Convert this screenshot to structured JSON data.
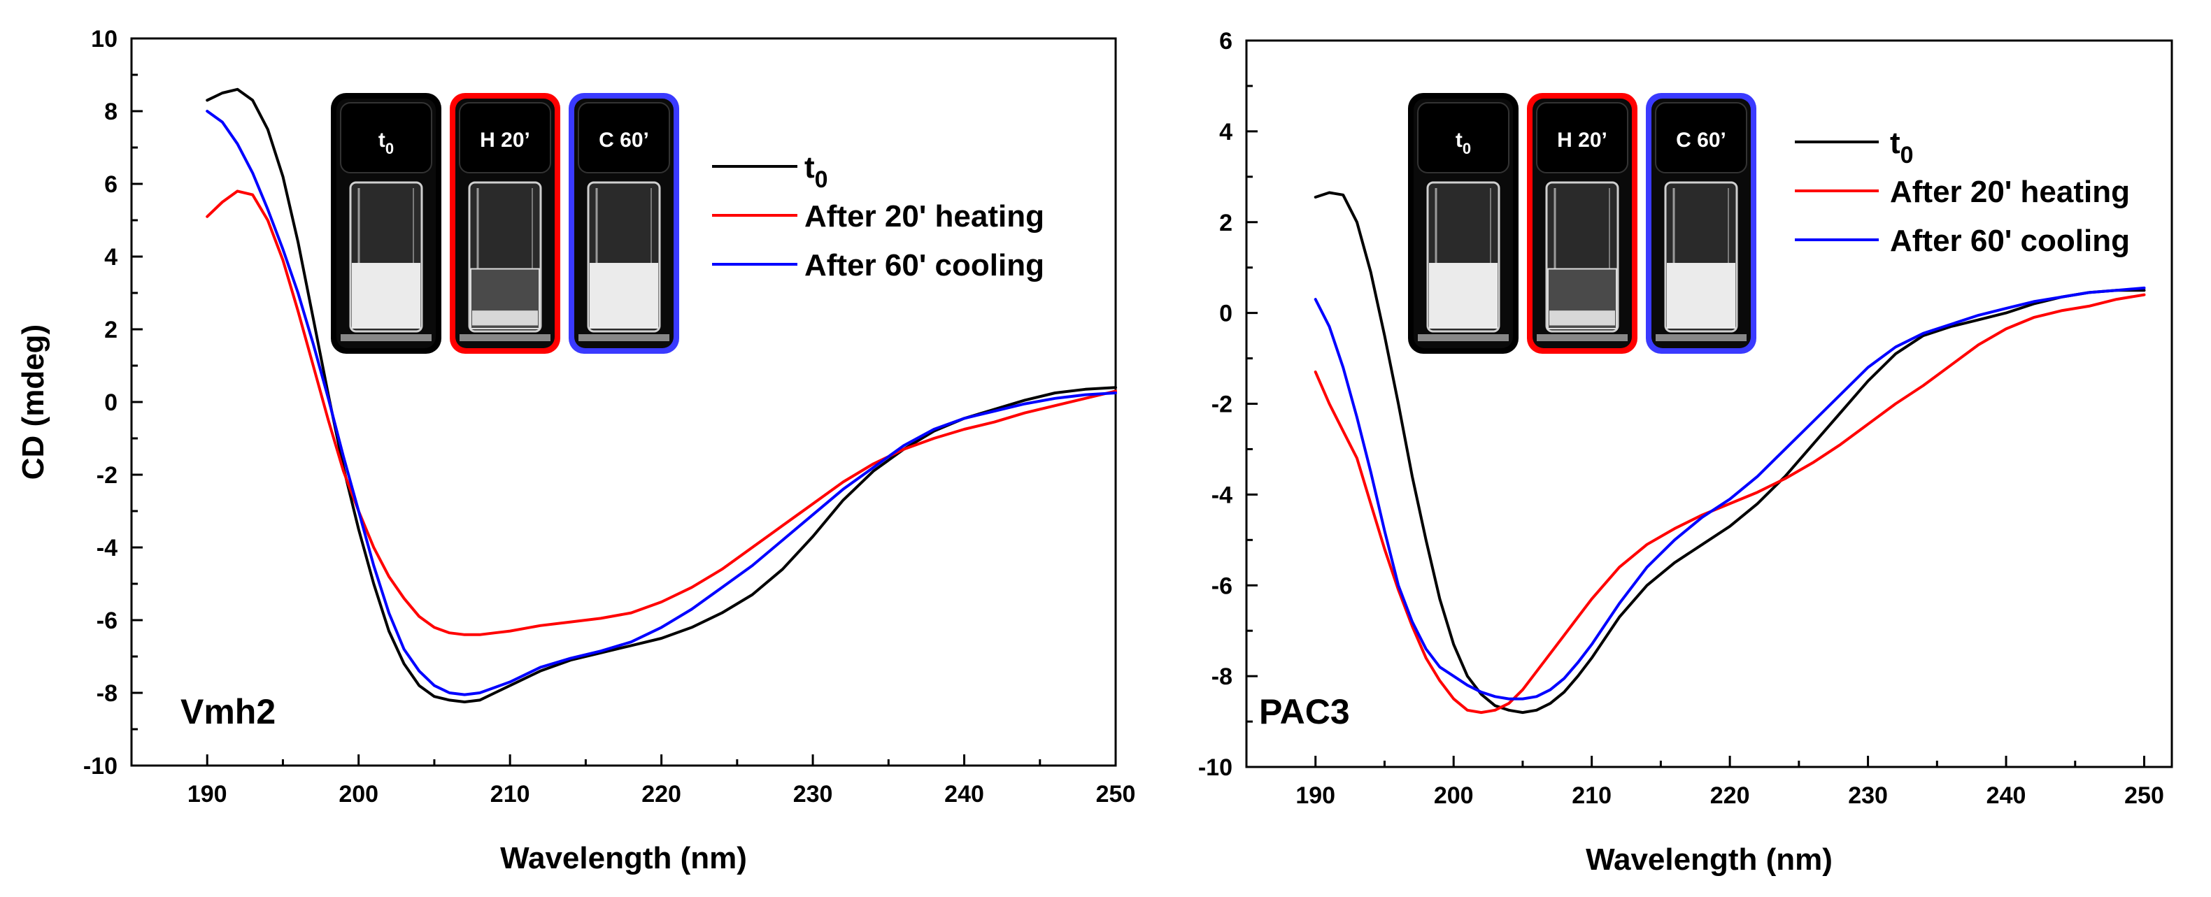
{
  "chart_data": [
    {
      "type": "line",
      "panel_label": "Vmh2",
      "xlabel": "Wavelength (nm)",
      "ylabel": "CD (mdeg)",
      "xlim": [
        185,
        250
      ],
      "ylim": [
        -10,
        10
      ],
      "xticks": [
        190,
        200,
        210,
        220,
        230,
        240,
        250
      ],
      "yticks": [
        -10,
        -8,
        -6,
        -4,
        -2,
        0,
        2,
        4,
        6,
        8,
        10
      ],
      "legend": [
        {
          "main": "t",
          "sub": "0",
          "color": "#000000"
        },
        {
          "main": "After 20' heating",
          "sub": "",
          "color": "#ff0000"
        },
        {
          "main": "After 60' cooling",
          "sub": "",
          "color": "#0000ff"
        }
      ],
      "vials": [
        {
          "main": "t",
          "sub": "0",
          "frame": "#000000",
          "liquid": "milky"
        },
        {
          "main": "H 20’",
          "sub": "",
          "frame": "#ff0000",
          "liquid": "clear-sediment"
        },
        {
          "main": "C 60’",
          "sub": "",
          "frame": "#3a3aff",
          "liquid": "milky"
        }
      ],
      "series": [
        {
          "name": "t0",
          "color": "#000000",
          "x": [
            190,
            191,
            192,
            193,
            194,
            195,
            196,
            197,
            198,
            199,
            200,
            201,
            202,
            203,
            204,
            205,
            206,
            207,
            208,
            209,
            210,
            212,
            214,
            216,
            218,
            220,
            222,
            224,
            226,
            228,
            230,
            232,
            234,
            236,
            238,
            240,
            242,
            244,
            246,
            248,
            250
          ],
          "y": [
            8.3,
            8.5,
            8.6,
            8.3,
            7.5,
            6.2,
            4.4,
            2.3,
            0.2,
            -1.8,
            -3.5,
            -5.0,
            -6.3,
            -7.2,
            -7.8,
            -8.1,
            -8.2,
            -8.25,
            -8.2,
            -8.0,
            -7.8,
            -7.4,
            -7.1,
            -6.9,
            -6.7,
            -6.5,
            -6.2,
            -5.8,
            -5.3,
            -4.6,
            -3.7,
            -2.7,
            -1.9,
            -1.3,
            -0.8,
            -0.45,
            -0.2,
            0.05,
            0.25,
            0.35,
            0.4
          ]
        },
        {
          "name": "After 20' heating",
          "color": "#ff0000",
          "x": [
            190,
            191,
            192,
            193,
            194,
            195,
            196,
            197,
            198,
            199,
            200,
            201,
            202,
            203,
            204,
            205,
            206,
            207,
            208,
            209,
            210,
            212,
            214,
            216,
            218,
            220,
            222,
            224,
            226,
            228,
            230,
            232,
            234,
            236,
            238,
            240,
            242,
            244,
            246,
            248,
            250
          ],
          "y": [
            5.1,
            5.5,
            5.8,
            5.7,
            5.0,
            3.9,
            2.5,
            1.0,
            -0.5,
            -1.9,
            -3.0,
            -4.0,
            -4.8,
            -5.4,
            -5.9,
            -6.2,
            -6.35,
            -6.4,
            -6.4,
            -6.35,
            -6.3,
            -6.15,
            -6.05,
            -5.95,
            -5.8,
            -5.5,
            -5.1,
            -4.6,
            -4.0,
            -3.4,
            -2.8,
            -2.2,
            -1.7,
            -1.3,
            -1.0,
            -0.75,
            -0.55,
            -0.3,
            -0.1,
            0.1,
            0.3
          ]
        },
        {
          "name": "After 60' cooling",
          "color": "#0000ff",
          "x": [
            190,
            191,
            192,
            193,
            194,
            195,
            196,
            197,
            198,
            199,
            200,
            201,
            202,
            203,
            204,
            205,
            206,
            207,
            208,
            209,
            210,
            212,
            214,
            216,
            218,
            220,
            222,
            224,
            226,
            228,
            230,
            232,
            234,
            236,
            238,
            240,
            242,
            244,
            246,
            248,
            250
          ],
          "y": [
            8.0,
            7.7,
            7.1,
            6.3,
            5.3,
            4.2,
            3.0,
            1.6,
            0.1,
            -1.5,
            -3.0,
            -4.5,
            -5.8,
            -6.8,
            -7.4,
            -7.8,
            -8.0,
            -8.05,
            -8.0,
            -7.85,
            -7.7,
            -7.3,
            -7.05,
            -6.85,
            -6.6,
            -6.2,
            -5.7,
            -5.1,
            -4.5,
            -3.8,
            -3.1,
            -2.4,
            -1.8,
            -1.2,
            -0.75,
            -0.45,
            -0.25,
            -0.05,
            0.1,
            0.2,
            0.25
          ]
        }
      ]
    },
    {
      "type": "line",
      "panel_label": "PAC3",
      "xlabel": "Wavelength (nm)",
      "ylabel": "",
      "xlim": [
        185,
        252
      ],
      "ylim": [
        -10,
        6
      ],
      "xticks": [
        190,
        200,
        210,
        220,
        230,
        240,
        250
      ],
      "yticks": [
        -10,
        -8,
        -6,
        -4,
        -2,
        0,
        2,
        4,
        6
      ],
      "legend": [
        {
          "main": "t",
          "sub": "0",
          "color": "#000000"
        },
        {
          "main": "After 20' heating",
          "sub": "",
          "color": "#ff0000"
        },
        {
          "main": "After 60' cooling",
          "sub": "",
          "color": "#0000ff"
        }
      ],
      "vials": [
        {
          "main": "t",
          "sub": "0",
          "frame": "#000000",
          "liquid": "milky"
        },
        {
          "main": "H 20’",
          "sub": "",
          "frame": "#ff0000",
          "liquid": "clear-sediment"
        },
        {
          "main": "C 60’",
          "sub": "",
          "frame": "#3a3aff",
          "liquid": "milky"
        }
      ],
      "series": [
        {
          "name": "t0",
          "color": "#000000",
          "x": [
            190,
            191,
            192,
            193,
            194,
            195,
            196,
            197,
            198,
            199,
            200,
            201,
            202,
            203,
            204,
            205,
            206,
            207,
            208,
            209,
            210,
            212,
            214,
            216,
            218,
            220,
            222,
            224,
            226,
            228,
            230,
            232,
            234,
            236,
            238,
            240,
            242,
            244,
            246,
            248,
            250
          ],
          "y": [
            2.55,
            2.65,
            2.6,
            2.0,
            0.9,
            -0.5,
            -2.0,
            -3.6,
            -5.0,
            -6.3,
            -7.3,
            -8.0,
            -8.4,
            -8.65,
            -8.75,
            -8.8,
            -8.75,
            -8.6,
            -8.35,
            -8.0,
            -7.6,
            -6.7,
            -6.0,
            -5.5,
            -5.1,
            -4.7,
            -4.2,
            -3.6,
            -2.9,
            -2.2,
            -1.5,
            -0.9,
            -0.5,
            -0.3,
            -0.15,
            0.0,
            0.2,
            0.35,
            0.45,
            0.5,
            0.5
          ]
        },
        {
          "name": "After 20' heating",
          "color": "#ff0000",
          "x": [
            190,
            191,
            192,
            193,
            194,
            195,
            196,
            197,
            198,
            199,
            200,
            201,
            202,
            203,
            204,
            205,
            206,
            207,
            208,
            209,
            210,
            212,
            214,
            216,
            218,
            220,
            222,
            224,
            226,
            228,
            230,
            232,
            234,
            236,
            238,
            240,
            242,
            244,
            246,
            248,
            250
          ],
          "y": [
            -1.3,
            -2.0,
            -2.6,
            -3.2,
            -4.2,
            -5.2,
            -6.1,
            -6.9,
            -7.6,
            -8.1,
            -8.5,
            -8.75,
            -8.8,
            -8.75,
            -8.6,
            -8.3,
            -7.9,
            -7.5,
            -7.1,
            -6.7,
            -6.3,
            -5.6,
            -5.1,
            -4.75,
            -4.45,
            -4.2,
            -3.95,
            -3.65,
            -3.3,
            -2.9,
            -2.45,
            -2.0,
            -1.6,
            -1.15,
            -0.7,
            -0.35,
            -0.1,
            0.05,
            0.15,
            0.3,
            0.4
          ]
        },
        {
          "name": "After 60' cooling",
          "color": "#0000ff",
          "x": [
            190,
            191,
            192,
            193,
            194,
            195,
            196,
            197,
            198,
            199,
            200,
            201,
            202,
            203,
            204,
            205,
            206,
            207,
            208,
            209,
            210,
            212,
            214,
            216,
            218,
            220,
            222,
            224,
            226,
            228,
            230,
            232,
            234,
            236,
            238,
            240,
            242,
            244,
            246,
            248,
            250
          ],
          "y": [
            0.3,
            -0.3,
            -1.2,
            -2.3,
            -3.5,
            -4.8,
            -6.0,
            -6.8,
            -7.4,
            -7.8,
            -8.0,
            -8.2,
            -8.35,
            -8.45,
            -8.5,
            -8.5,
            -8.45,
            -8.3,
            -8.05,
            -7.7,
            -7.3,
            -6.4,
            -5.6,
            -5.0,
            -4.5,
            -4.1,
            -3.6,
            -3.0,
            -2.4,
            -1.8,
            -1.2,
            -0.75,
            -0.45,
            -0.25,
            -0.05,
            0.1,
            0.25,
            0.35,
            0.45,
            0.5,
            0.55
          ]
        }
      ]
    }
  ]
}
